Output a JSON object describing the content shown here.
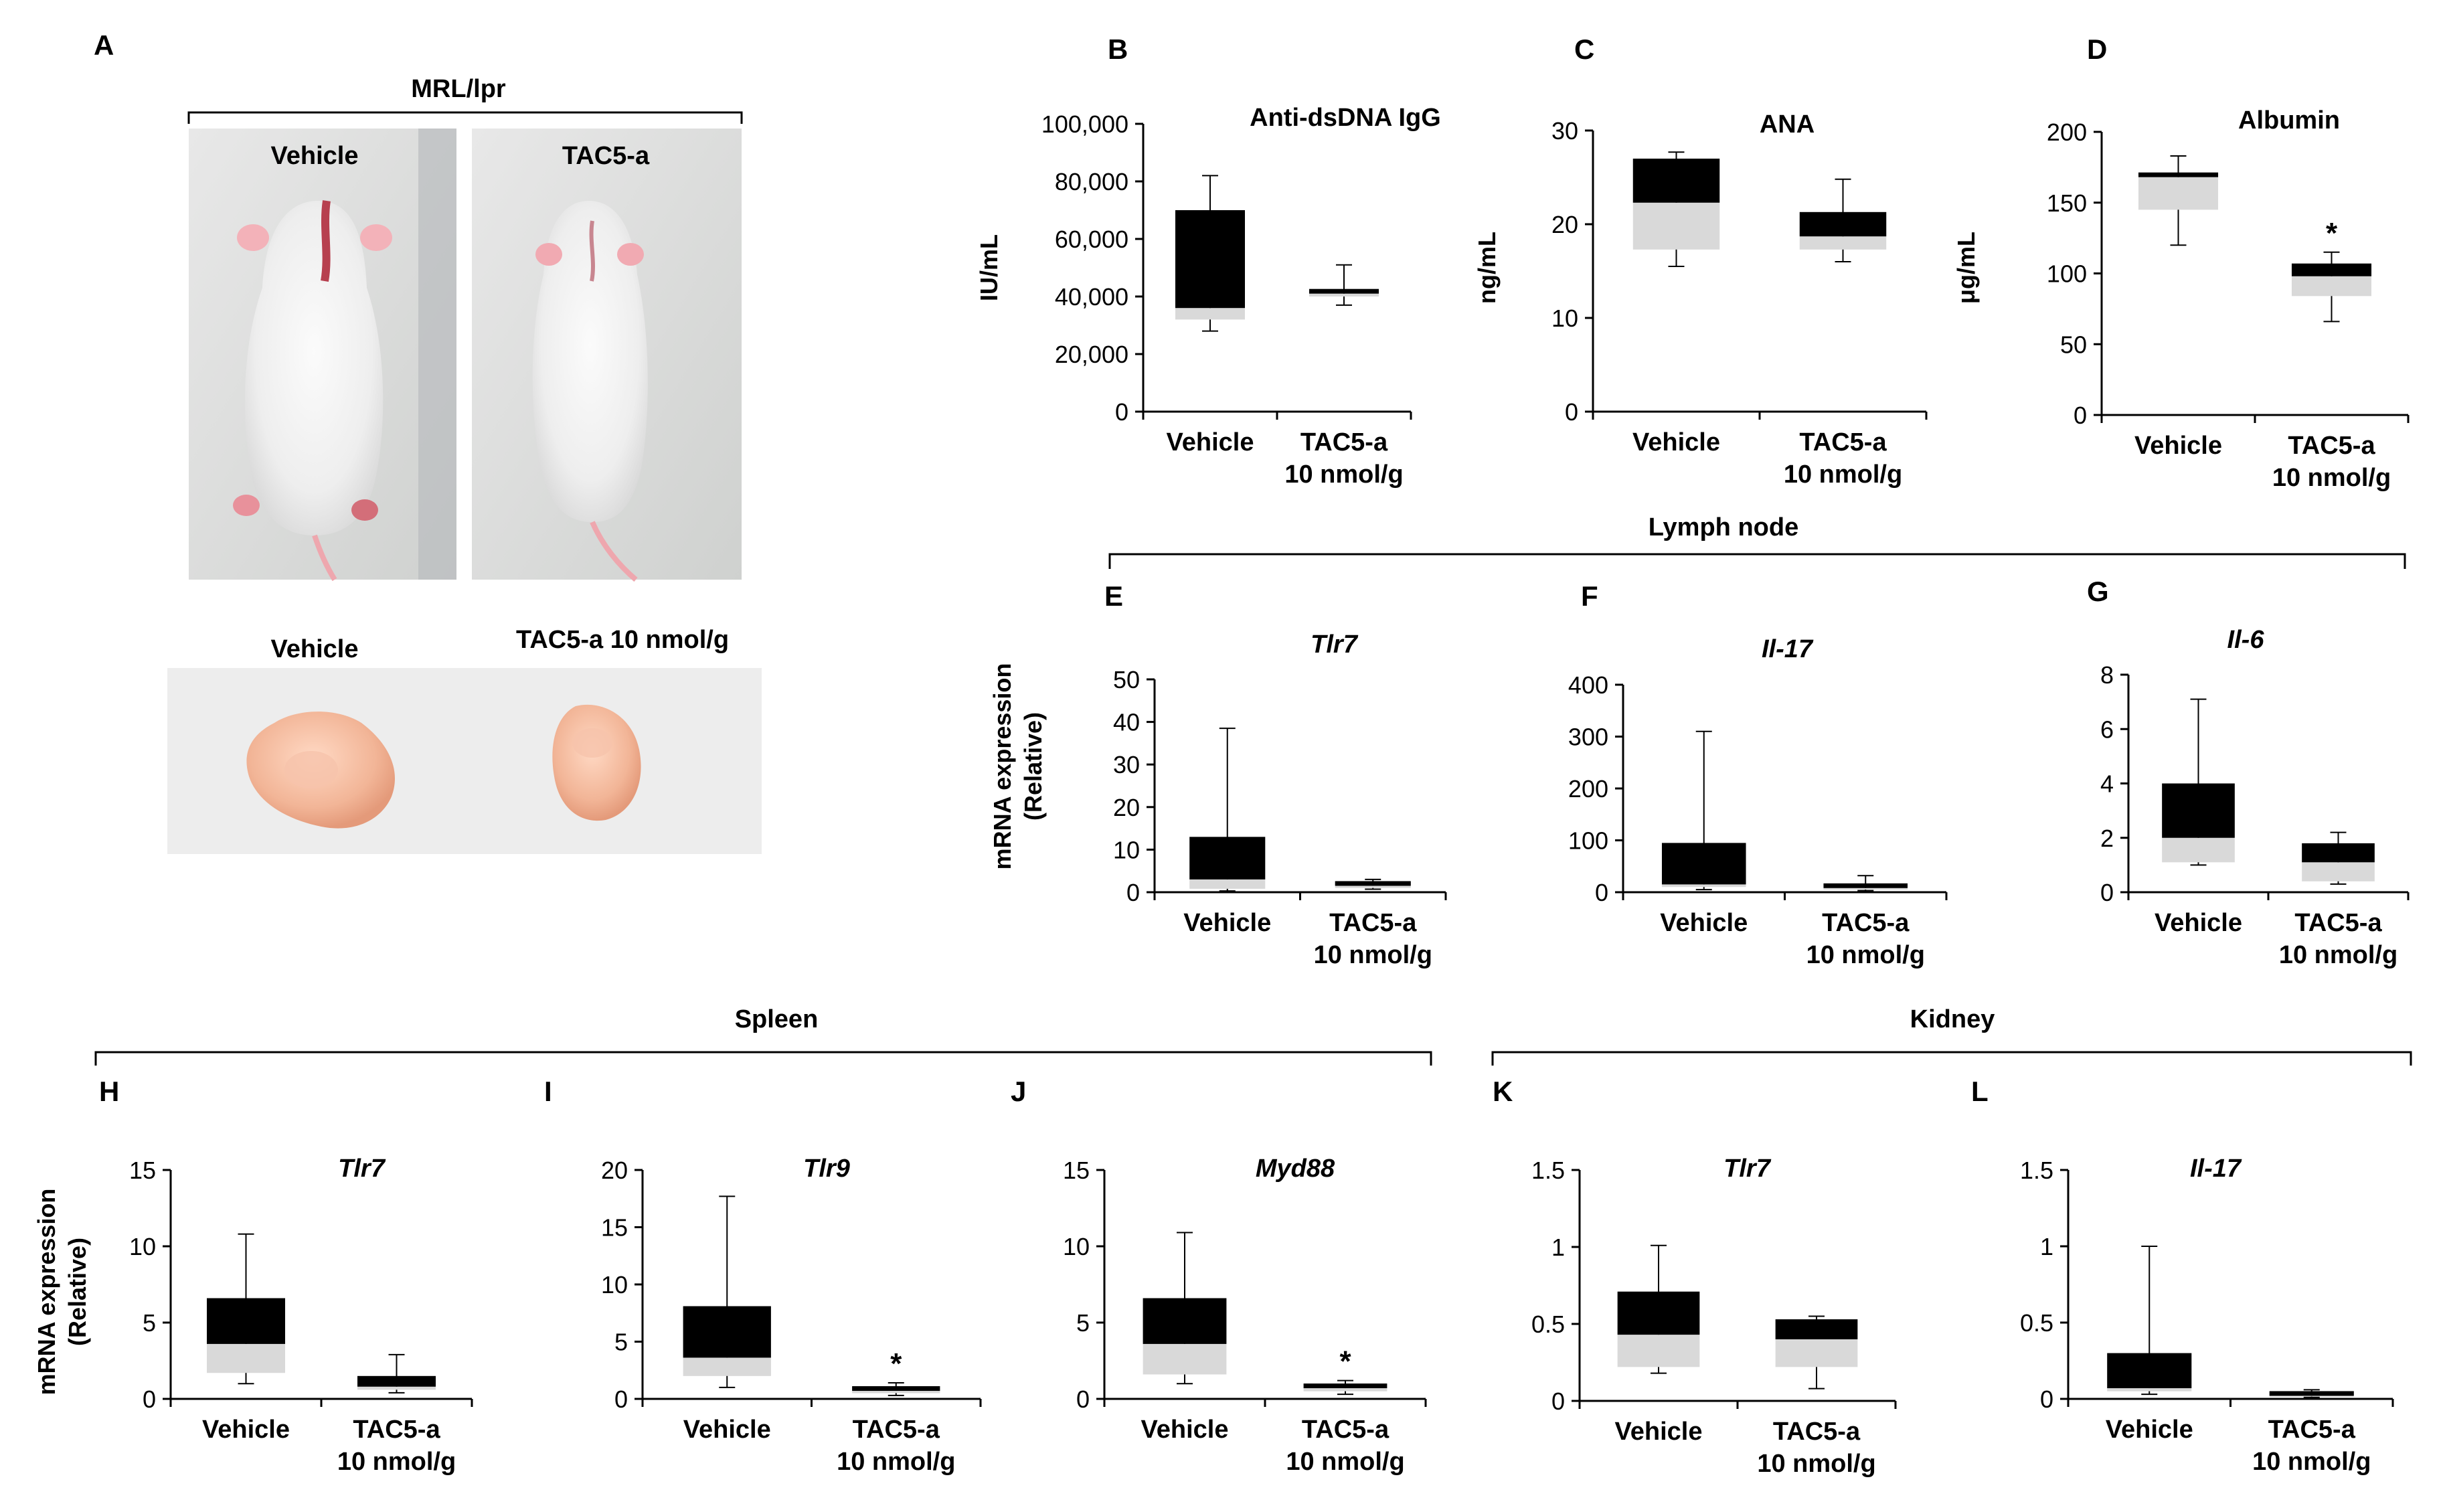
{
  "figure": {
    "panel_a": {
      "letter": "A",
      "strain_label": "MRL/lpr",
      "photo_top_left_label": "Vehicle",
      "photo_top_right_label": "TAC5-a",
      "photo_bottom_left_label": "Vehicle",
      "photo_bottom_right_label": "TAC5-a 10 nmol/g"
    },
    "section_labels": {
      "lymph_node": "Lymph node",
      "spleen": "Spleen",
      "kidney": "Kidney"
    },
    "shared_ylabels": {
      "mrna_line1": "mRNA expression",
      "mrna_line2": "(Relative)"
    },
    "category_labels": {
      "vehicle": "Vehicle",
      "tac5_line1": "TAC5-a",
      "tac5_line2": "10 nmol/g"
    },
    "colors": {
      "box_upper": "#000000",
      "box_lower": "#d9d9d9",
      "axis": "#000000"
    }
  },
  "chart_data": [
    {
      "id": "B",
      "type": "box",
      "title": "Anti-dsDNA IgG",
      "title_italic": false,
      "ylabel": "IU/mL",
      "ylim": [
        0,
        100000
      ],
      "yticks": [
        0,
        20000,
        40000,
        60000,
        80000,
        100000
      ],
      "ytick_labels": [
        "0",
        "20,000",
        "40,000",
        "60,000",
        "80,000",
        "100,000"
      ],
      "categories": [
        "Vehicle",
        "TAC5-a 10 nmol/g"
      ],
      "series": [
        {
          "name": "Vehicle",
          "min": 28000,
          "q1": 32000,
          "median": 36000,
          "q3": 70000,
          "max": 82000,
          "sig": ""
        },
        {
          "name": "TAC5-a 10 nmol/g",
          "min": 37000,
          "q1": 40000,
          "median": 41000,
          "q3": 42500,
          "max": 51000,
          "sig": ""
        }
      ]
    },
    {
      "id": "C",
      "type": "box",
      "title": "ANA",
      "title_italic": false,
      "ylabel": "ng/mL",
      "ylim": [
        0,
        30
      ],
      "yticks": [
        0,
        10,
        20,
        30
      ],
      "ytick_labels": [
        "0",
        "10",
        "20",
        "30"
      ],
      "categories": [
        "Vehicle",
        "TAC5-a 10 nmol/g"
      ],
      "series": [
        {
          "name": "Vehicle",
          "min": 15.5,
          "q1": 17.3,
          "median": 22.3,
          "q3": 27,
          "max": 27.7,
          "sig": ""
        },
        {
          "name": "TAC5-a 10 nmol/g",
          "min": 16,
          "q1": 17.3,
          "median": 18.7,
          "q3": 21.3,
          "max": 24.8,
          "sig": ""
        }
      ]
    },
    {
      "id": "D",
      "type": "box",
      "title": "Albumin",
      "title_italic": false,
      "ylabel": "μg/mL",
      "ylim": [
        0,
        200
      ],
      "yticks": [
        0,
        50,
        100,
        150,
        200
      ],
      "ytick_labels": [
        "0",
        "50",
        "100",
        "150",
        "200"
      ],
      "categories": [
        "Vehicle",
        "TAC5-a 10 nmol/g"
      ],
      "series": [
        {
          "name": "Vehicle",
          "min": 120,
          "q1": 145,
          "median": 168,
          "q3": 171,
          "max": 183,
          "sig": ""
        },
        {
          "name": "TAC5-a 10 nmol/g",
          "min": 66,
          "q1": 84,
          "median": 98,
          "q3": 107,
          "max": 115,
          "sig": "*"
        }
      ]
    },
    {
      "id": "E",
      "type": "box",
      "title": "Tlr7",
      "title_italic": true,
      "ylabel": "",
      "ylim": [
        0,
        50
      ],
      "yticks": [
        0,
        10,
        20,
        30,
        40,
        50
      ],
      "ytick_labels": [
        "0",
        "10",
        "20",
        "30",
        "40",
        "50"
      ],
      "categories": [
        "Vehicle",
        "TAC5-a 10 nmol/g"
      ],
      "series": [
        {
          "name": "Vehicle",
          "min": 0.3,
          "q1": 0.8,
          "median": 3,
          "q3": 13,
          "max": 38.5,
          "sig": ""
        },
        {
          "name": "TAC5-a 10 nmol/g",
          "min": 0.7,
          "q1": 1,
          "median": 1.5,
          "q3": 2.5,
          "max": 3,
          "sig": ""
        }
      ]
    },
    {
      "id": "F",
      "type": "box",
      "title": "Il-17",
      "title_italic": true,
      "ylabel": "",
      "ylim": [
        0,
        400
      ],
      "yticks": [
        0,
        100,
        200,
        300,
        400
      ],
      "ytick_labels": [
        "0",
        "100",
        "200",
        "300",
        "400"
      ],
      "categories": [
        "Vehicle",
        "TAC5-a 10 nmol/g"
      ],
      "series": [
        {
          "name": "Vehicle",
          "min": 5,
          "q1": 10,
          "median": 15,
          "q3": 95,
          "max": 310,
          "sig": ""
        },
        {
          "name": "TAC5-a 10 nmol/g",
          "min": 3,
          "q1": 5,
          "median": 8,
          "q3": 15,
          "max": 32,
          "sig": ""
        }
      ]
    },
    {
      "id": "G",
      "type": "box",
      "title": "Il-6",
      "title_italic": true,
      "ylabel": "",
      "ylim": [
        0,
        8
      ],
      "yticks": [
        0,
        2,
        4,
        6,
        8
      ],
      "ytick_labels": [
        "0",
        "2",
        "4",
        "6",
        "8"
      ],
      "categories": [
        "Vehicle",
        "TAC5-a 10 nmol/g"
      ],
      "series": [
        {
          "name": "Vehicle",
          "min": 1,
          "q1": 1.1,
          "median": 2,
          "q3": 4,
          "max": 7.1,
          "sig": ""
        },
        {
          "name": "TAC5-a 10 nmol/g",
          "min": 0.3,
          "q1": 0.4,
          "median": 1.1,
          "q3": 1.8,
          "max": 2.2,
          "sig": ""
        }
      ]
    },
    {
      "id": "H",
      "type": "box",
      "title": "Tlr7",
      "title_italic": true,
      "ylabel": "",
      "ylim": [
        0,
        15
      ],
      "yticks": [
        0,
        5,
        10,
        15
      ],
      "ytick_labels": [
        "0",
        "5",
        "10",
        "15"
      ],
      "categories": [
        "Vehicle",
        "TAC5-a 10 nmol/g"
      ],
      "series": [
        {
          "name": "Vehicle",
          "min": 1,
          "q1": 1.7,
          "median": 3.6,
          "q3": 6.6,
          "max": 10.8,
          "sig": ""
        },
        {
          "name": "TAC5-a 10 nmol/g",
          "min": 0.4,
          "q1": 0.6,
          "median": 0.8,
          "q3": 1.5,
          "max": 2.9,
          "sig": ""
        }
      ]
    },
    {
      "id": "I",
      "type": "box",
      "title": "Tlr9",
      "title_italic": true,
      "ylabel": "",
      "ylim": [
        0,
        20
      ],
      "yticks": [
        0,
        5,
        10,
        15,
        20
      ],
      "ytick_labels": [
        "0",
        "5",
        "10",
        "15",
        "20"
      ],
      "categories": [
        "Vehicle",
        "TAC5-a 10 nmol/g"
      ],
      "series": [
        {
          "name": "Vehicle",
          "min": 1,
          "q1": 2,
          "median": 3.6,
          "q3": 8.1,
          "max": 17.7,
          "sig": ""
        },
        {
          "name": "TAC5-a 10 nmol/g",
          "min": 0.3,
          "q1": 0.5,
          "median": 0.7,
          "q3": 0.9,
          "max": 1.4,
          "sig": "*"
        }
      ]
    },
    {
      "id": "J",
      "type": "box",
      "title": "Myd88",
      "title_italic": true,
      "ylabel": "",
      "ylim": [
        0,
        15
      ],
      "yticks": [
        0,
        5,
        10,
        15
      ],
      "ytick_labels": [
        "0",
        "5",
        "10",
        "15"
      ],
      "categories": [
        "Vehicle",
        "TAC5-a 10 nmol/g"
      ],
      "series": [
        {
          "name": "Vehicle",
          "min": 1,
          "q1": 1.6,
          "median": 3.6,
          "q3": 6.6,
          "max": 10.9,
          "sig": ""
        },
        {
          "name": "TAC5-a 10 nmol/g",
          "min": 0.3,
          "q1": 0.5,
          "median": 0.7,
          "q3": 0.9,
          "max": 1.2,
          "sig": "*"
        }
      ]
    },
    {
      "id": "K",
      "type": "box",
      "title": "Tlr7",
      "title_italic": true,
      "ylabel": "",
      "ylim": [
        0,
        1.5
      ],
      "yticks": [
        0,
        0.5,
        1,
        1.5
      ],
      "ytick_labels": [
        "0",
        "0.5",
        "1",
        "1.5"
      ],
      "categories": [
        "Vehicle",
        "TAC5-a 10 nmol/g"
      ],
      "series": [
        {
          "name": "Vehicle",
          "min": 0.18,
          "q1": 0.22,
          "median": 0.43,
          "q3": 0.71,
          "max": 1.01,
          "sig": ""
        },
        {
          "name": "TAC5-a 10 nmol/g",
          "min": 0.08,
          "q1": 0.22,
          "median": 0.4,
          "q3": 0.53,
          "max": 0.55,
          "sig": ""
        }
      ]
    },
    {
      "id": "L",
      "type": "box",
      "title": "Il-17",
      "title_italic": true,
      "ylabel": "",
      "ylim": [
        0,
        1.5
      ],
      "yticks": [
        0,
        0.5,
        1,
        1.5
      ],
      "ytick_labels": [
        "0",
        "0.5",
        "1",
        "1.5"
      ],
      "categories": [
        "Vehicle",
        "TAC5-a 10 nmol/g"
      ],
      "series": [
        {
          "name": "Vehicle",
          "min": 0.03,
          "q1": 0.05,
          "median": 0.07,
          "q3": 0.3,
          "max": 1,
          "sig": ""
        },
        {
          "name": "TAC5-a 10 nmol/g",
          "min": 0.01,
          "q1": 0.015,
          "median": 0.02,
          "q3": 0.03,
          "max": 0.06,
          "sig": ""
        }
      ]
    }
  ]
}
